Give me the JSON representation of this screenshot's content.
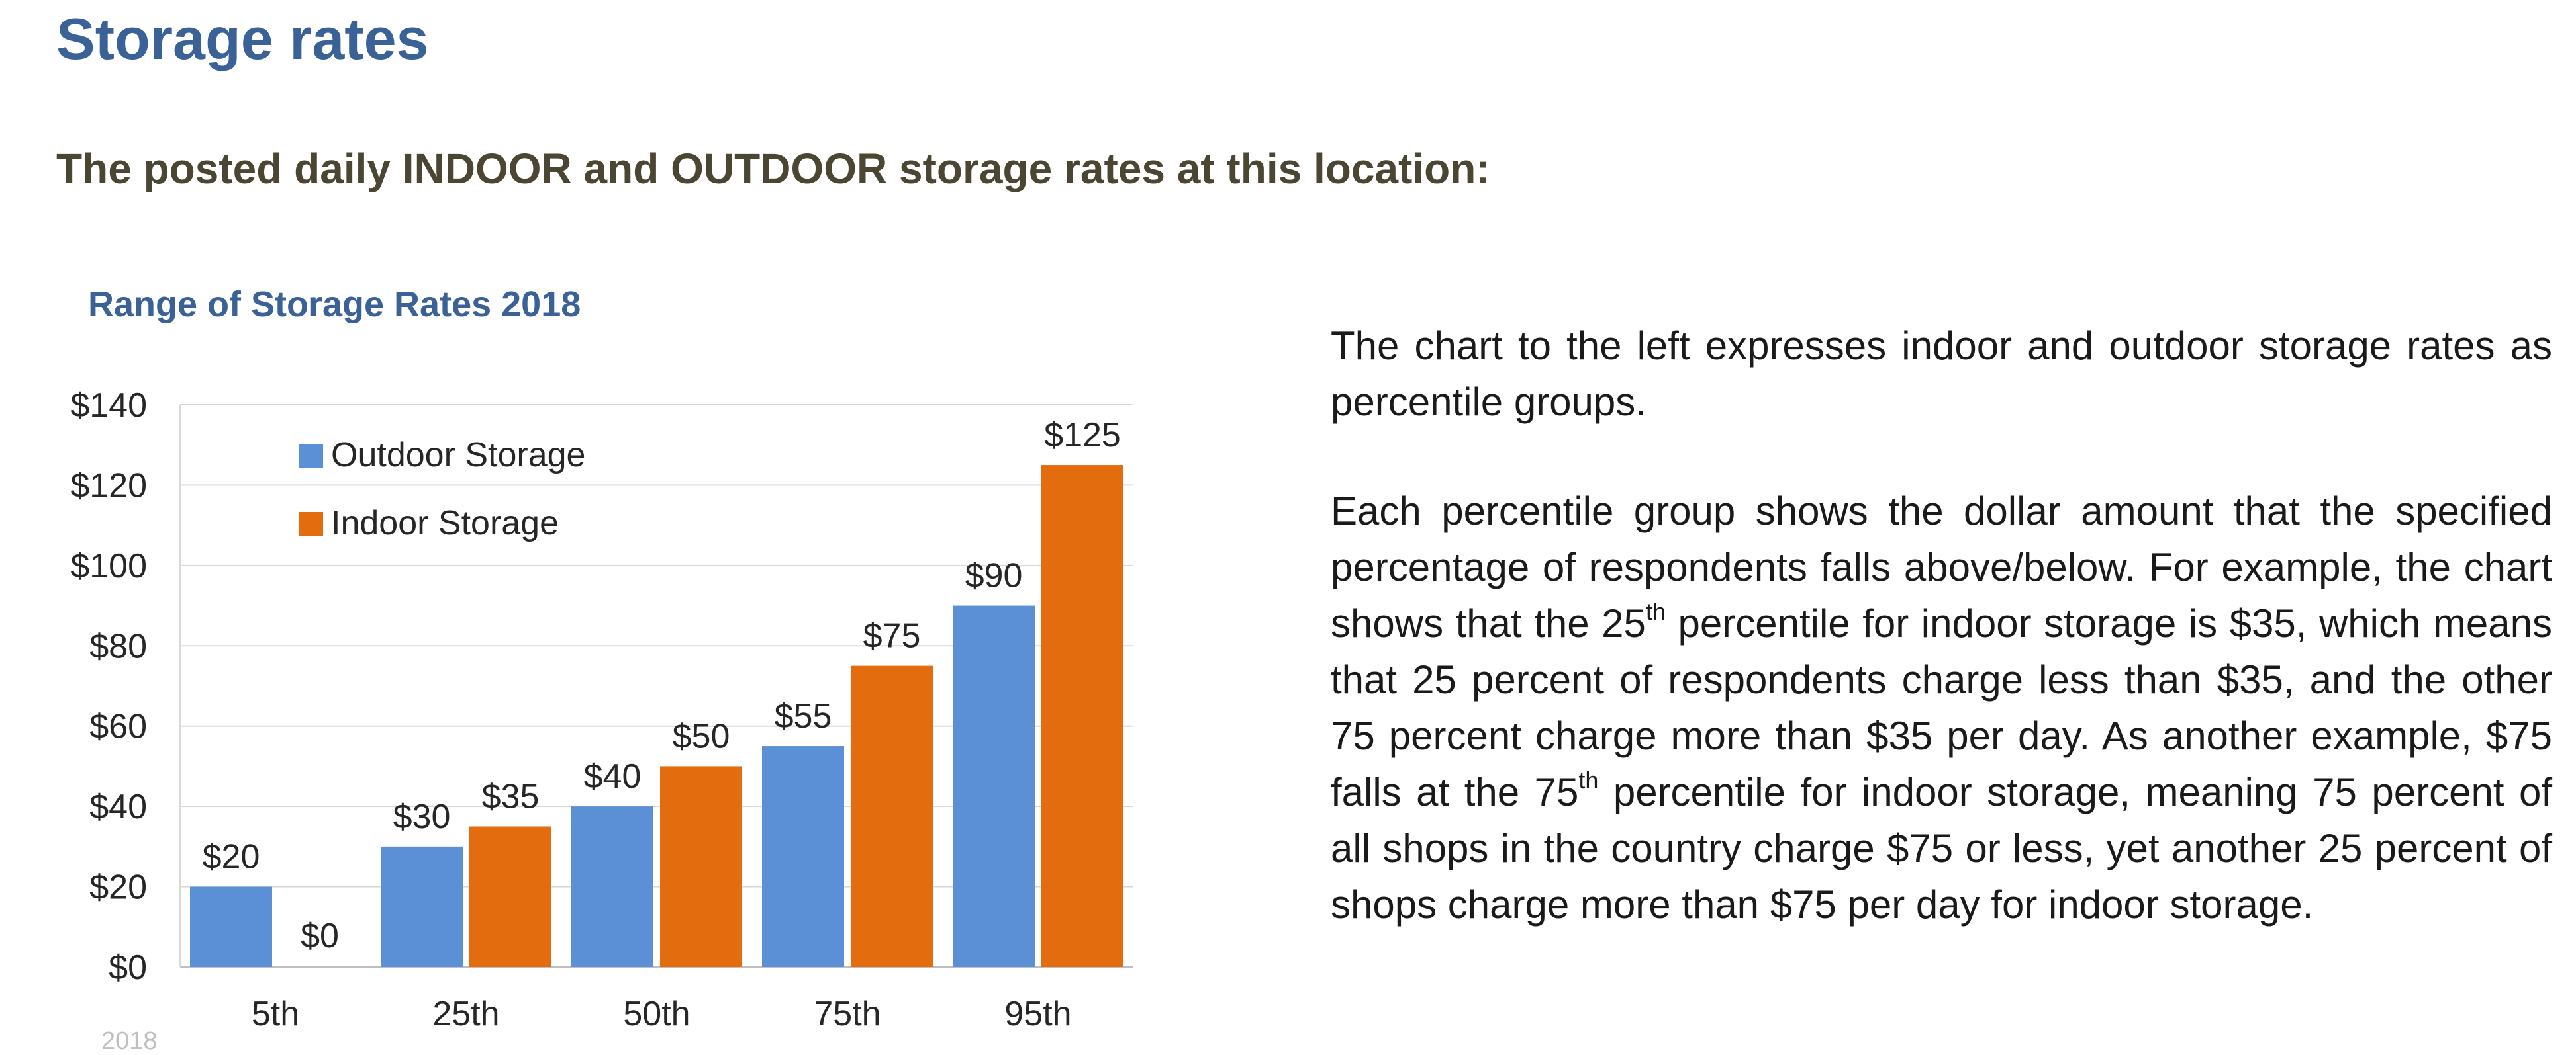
{
  "page": {
    "title": "Storage rates",
    "subtitle": "The posted daily INDOOR and OUTDOOR storage rates at this location:",
    "footer_year": "2018"
  },
  "description": {
    "p1": "The chart to the left expresses indoor and outdoor storage rates as percentile groups.",
    "p2_a": "Each percentile group shows the dollar amount that the specified percentage of respondents falls above/below. For example, the chart shows that the 25",
    "p2_sup1": "th",
    "p2_b": " percentile for indoor storage is $35, which means that 25 percent of respondents charge less than $35, and the other 75 percent charge more than $35 per day. As another example, $75 falls at the 75",
    "p2_sup2": "th",
    "p2_c": " percentile for indoor storage, meaning 75 percent of all shops in the country charge $75 or less, yet another 25 percent of shops charge more than $75 per day for indoor storage."
  },
  "chart_data": {
    "type": "bar",
    "title": "Range of Storage Rates 2018",
    "xlabel": "",
    "ylabel": "",
    "categories": [
      "5th",
      "25th",
      "50th",
      "75th",
      "95th"
    ],
    "series": [
      {
        "name": "Outdoor Storage",
        "color": "#5B8FD6",
        "values": [
          20,
          30,
          40,
          55,
          90
        ],
        "labels": [
          "$20",
          "$30",
          "$40",
          "$55",
          "$90"
        ]
      },
      {
        "name": "Indoor Storage",
        "color": "#E36C0E",
        "values": [
          0,
          35,
          50,
          75,
          125
        ],
        "labels": [
          "$0",
          "$35",
          "$50",
          "$75",
          "$125"
        ]
      }
    ],
    "ylim": [
      0,
      140
    ],
    "yticks": [
      0,
      20,
      40,
      60,
      80,
      100,
      120,
      140
    ],
    "ytick_labels": [
      "$0",
      "$20",
      "$40",
      "$60",
      "$80",
      "$100",
      "$120",
      "$140"
    ],
    "grid": true,
    "legend": "top-left"
  }
}
